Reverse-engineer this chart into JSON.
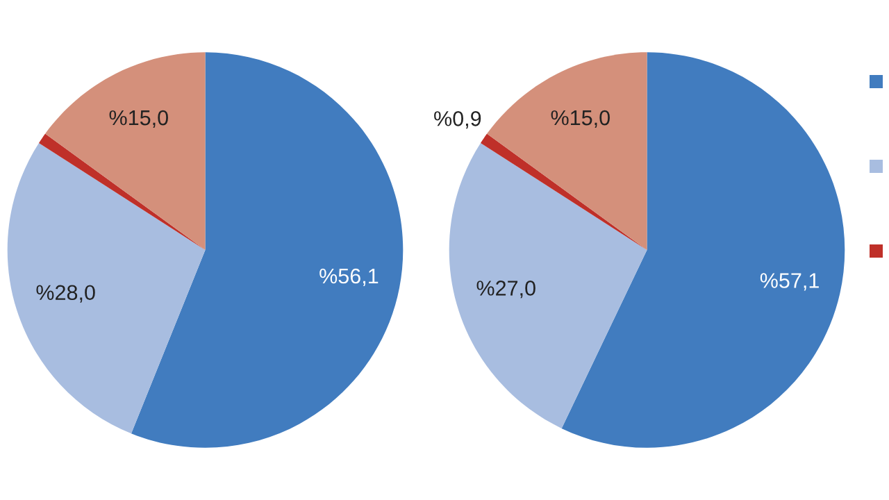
{
  "chart_data": [
    {
      "type": "pie",
      "categories": [
        null,
        null,
        null,
        null
      ],
      "values": [
        56.1,
        28.0,
        0.9,
        15.0
      ],
      "colors": [
        "#417cbf",
        "#a8bde0",
        "#bf3029",
        "#d4907b"
      ],
      "value_labels": [
        "%56,1",
        "%28,0",
        null,
        "%15,0"
      ]
    },
    {
      "type": "pie",
      "categories": [
        null,
        null,
        null,
        null
      ],
      "values": [
        57.1,
        27.0,
        0.9,
        15.0
      ],
      "colors": [
        "#417cbf",
        "#a8bde0",
        "#bf3029",
        "#d4907b"
      ],
      "value_labels": [
        "%57,1",
        "%27,0",
        "%0,9",
        "%15,0"
      ]
    }
  ]
}
